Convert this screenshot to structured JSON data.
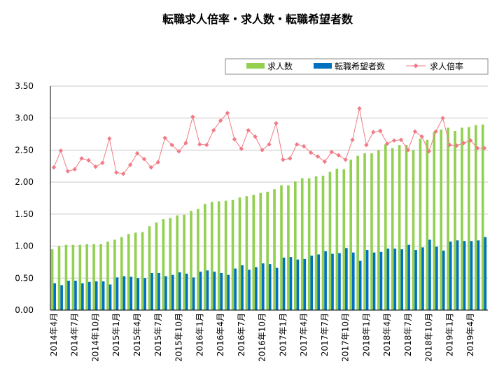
{
  "chart_data": {
    "type": "bar",
    "title": "転職求人倍率・求人数・転職希望者数",
    "legend": {
      "position": "top-right",
      "items": [
        {
          "label": "求人数",
          "marker": "bar",
          "color": "#92d050"
        },
        {
          "label": "転職希望者数",
          "marker": "bar",
          "color": "#0070c0"
        },
        {
          "label": "求人倍率",
          "marker": "line-diamond",
          "color": "#f07b84"
        }
      ]
    },
    "ylim": [
      0,
      3.5
    ],
    "yticks": [
      "0.00",
      "0.50",
      "1.00",
      "1.50",
      "2.00",
      "2.50",
      "3.00",
      "3.50"
    ],
    "grid": true,
    "x_tick_labels": [
      {
        "index": 0,
        "label": "2014年4月"
      },
      {
        "index": 3,
        "label": "2014年7月"
      },
      {
        "index": 6,
        "label": "2014年10月"
      },
      {
        "index": 9,
        "label": "2015年1月"
      },
      {
        "index": 12,
        "label": "2015年4月"
      },
      {
        "index": 15,
        "label": "2015年7月"
      },
      {
        "index": 18,
        "label": "2015年10月"
      },
      {
        "index": 21,
        "label": "2016年1月"
      },
      {
        "index": 24,
        "label": "2016年4月"
      },
      {
        "index": 27,
        "label": "2016年7月"
      },
      {
        "index": 30,
        "label": "2016年10月"
      },
      {
        "index": 33,
        "label": "2017年1月"
      },
      {
        "index": 36,
        "label": "2017年4月"
      },
      {
        "index": 39,
        "label": "2017年7月"
      },
      {
        "index": 42,
        "label": "2017年10月"
      },
      {
        "index": 45,
        "label": "2018年1月"
      },
      {
        "index": 48,
        "label": "2018年4月"
      },
      {
        "index": 51,
        "label": "2018年7月"
      },
      {
        "index": 54,
        "label": "2018年10月"
      },
      {
        "index": 57,
        "label": "2019年1月"
      },
      {
        "index": 60,
        "label": "2019年4月"
      }
    ],
    "x": [
      "2014-04",
      "2014-05",
      "2014-06",
      "2014-07",
      "2014-08",
      "2014-09",
      "2014-10",
      "2014-11",
      "2014-12",
      "2015-01",
      "2015-02",
      "2015-03",
      "2015-04",
      "2015-05",
      "2015-06",
      "2015-07",
      "2015-08",
      "2015-09",
      "2015-10",
      "2015-11",
      "2015-12",
      "2016-01",
      "2016-02",
      "2016-03",
      "2016-04",
      "2016-05",
      "2016-06",
      "2016-07",
      "2016-08",
      "2016-09",
      "2016-10",
      "2016-11",
      "2016-12",
      "2017-01",
      "2017-02",
      "2017-03",
      "2017-04",
      "2017-05",
      "2017-06",
      "2017-07",
      "2017-08",
      "2017-09",
      "2017-10",
      "2017-11",
      "2017-12",
      "2018-01",
      "2018-02",
      "2018-03",
      "2018-04",
      "2018-05",
      "2018-06",
      "2018-07",
      "2018-08",
      "2018-09",
      "2018-10",
      "2018-11",
      "2018-12",
      "2019-01",
      "2019-02",
      "2019-03",
      "2019-04",
      "2019-05",
      "2019-06"
    ],
    "series": [
      {
        "name": "求人数",
        "type": "bar",
        "color": "#92d050",
        "values": [
          0.95,
          1.0,
          1.02,
          1.02,
          1.02,
          1.03,
          1.03,
          1.03,
          1.07,
          1.1,
          1.14,
          1.19,
          1.21,
          1.22,
          1.31,
          1.37,
          1.42,
          1.44,
          1.48,
          1.49,
          1.55,
          1.58,
          1.66,
          1.69,
          1.7,
          1.71,
          1.72,
          1.76,
          1.78,
          1.8,
          1.83,
          1.85,
          1.89,
          1.95,
          1.95,
          2.01,
          2.06,
          2.06,
          2.09,
          2.1,
          2.16,
          2.21,
          2.2,
          2.35,
          2.41,
          2.45,
          2.45,
          2.5,
          2.59,
          2.53,
          2.58,
          2.58,
          2.5,
          2.68,
          2.66,
          2.78,
          2.82,
          2.85,
          2.8,
          2.85,
          2.86,
          2.89,
          2.9
        ]
      },
      {
        "name": "転職希望者数",
        "type": "bar",
        "color": "#0070c0",
        "values": [
          0.42,
          0.39,
          0.46,
          0.46,
          0.42,
          0.44,
          0.45,
          0.45,
          0.4,
          0.51,
          0.53,
          0.52,
          0.5,
          0.5,
          0.58,
          0.58,
          0.53,
          0.55,
          0.59,
          0.57,
          0.51,
          0.6,
          0.62,
          0.6,
          0.58,
          0.55,
          0.65,
          0.7,
          0.63,
          0.67,
          0.73,
          0.72,
          0.66,
          0.82,
          0.83,
          0.79,
          0.8,
          0.85,
          0.87,
          0.92,
          0.88,
          0.89,
          0.97,
          0.9,
          0.77,
          0.94,
          0.9,
          0.91,
          0.96,
          0.96,
          0.95,
          1.02,
          0.94,
          0.98,
          1.1,
          0.99,
          0.93,
          1.07,
          1.09,
          1.08,
          1.08,
          1.09,
          1.14
        ]
      },
      {
        "name": "求人倍率",
        "type": "line",
        "color": "#f07b84",
        "values": [
          2.23,
          2.49,
          2.17,
          2.2,
          2.37,
          2.34,
          2.24,
          2.3,
          2.68,
          2.15,
          2.13,
          2.27,
          2.45,
          2.36,
          2.23,
          2.31,
          2.69,
          2.58,
          2.48,
          2.61,
          3.02,
          2.59,
          2.58,
          2.81,
          2.96,
          3.08,
          2.67,
          2.52,
          2.81,
          2.71,
          2.5,
          2.59,
          2.92,
          2.35,
          2.37,
          2.59,
          2.56,
          2.46,
          2.4,
          2.32,
          2.47,
          2.42,
          2.35,
          2.66,
          3.15,
          2.58,
          2.78,
          2.8,
          2.6,
          2.65,
          2.66,
          2.5,
          2.79,
          2.71,
          2.48,
          2.79,
          3.0,
          2.58,
          2.57,
          2.61,
          2.65,
          2.53,
          2.53
        ]
      }
    ]
  }
}
